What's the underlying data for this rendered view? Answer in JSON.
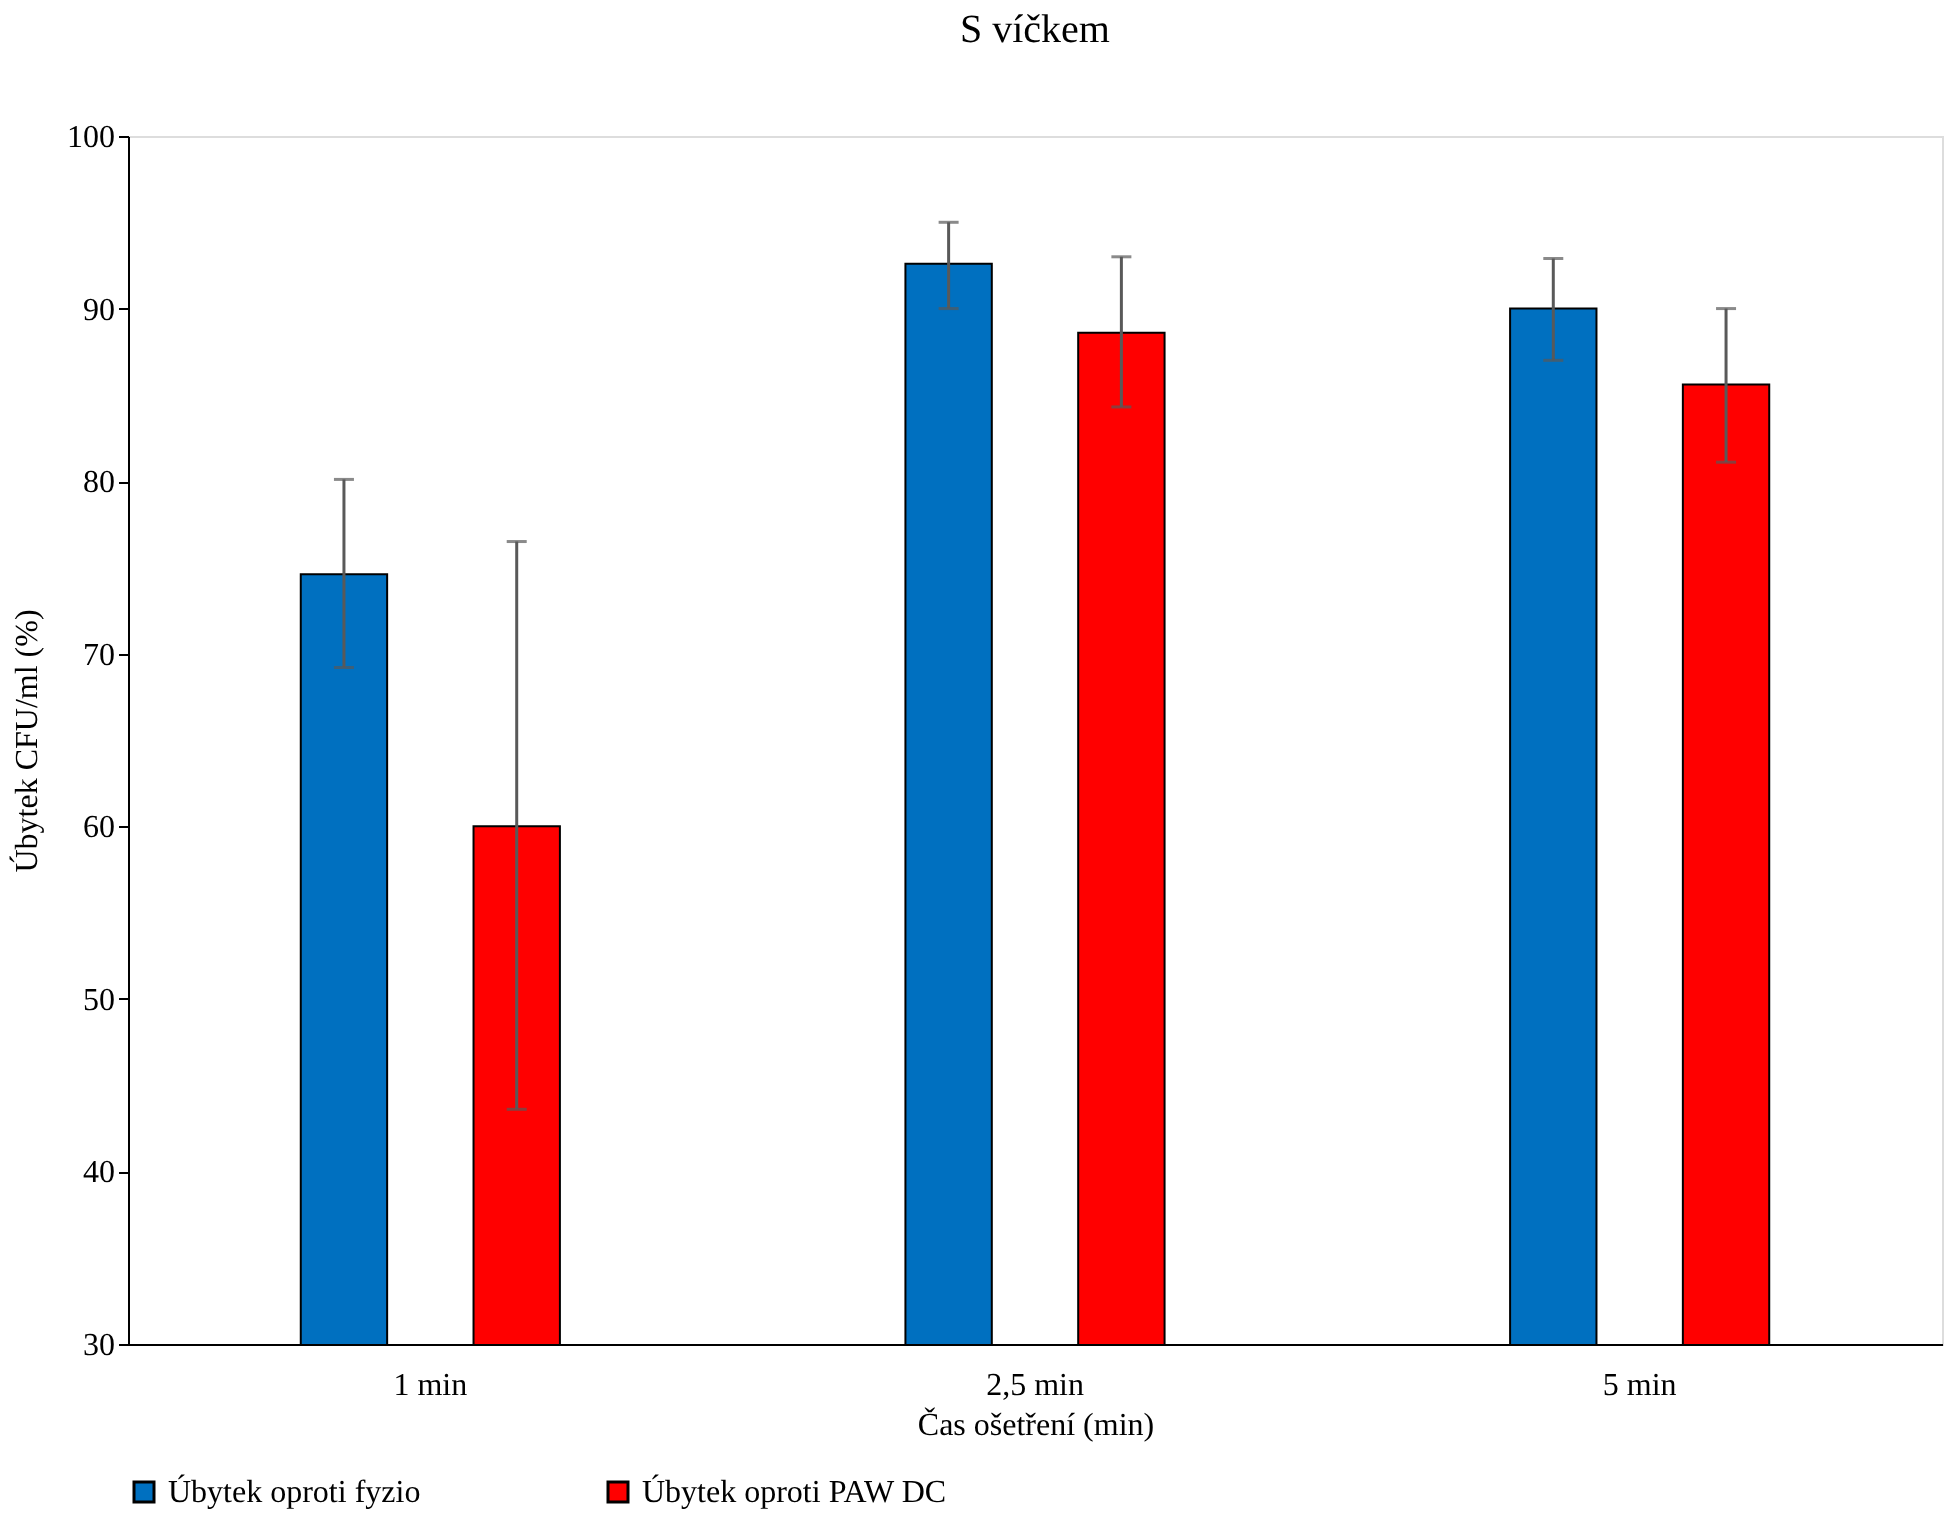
{
  "chart_data": {
    "type": "bar",
    "title": "S víčkem",
    "xlabel": "Čas ošetření (min)",
    "ylabel": "Úbytek CFU/ml (%)",
    "categories": [
      "1 min",
      "2,5 min",
      "5 min"
    ],
    "series": [
      {
        "name": "Úbytek oproti fyzio",
        "color": "#0070c0",
        "values": [
          74.6,
          92.6,
          90.0
        ],
        "errors": [
          [
            69.2,
            80.1
          ],
          [
            90.0,
            95.0
          ],
          [
            87.0,
            92.9
          ]
        ]
      },
      {
        "name": "Úbytek oproti PAW DC",
        "color": "#ff0000",
        "values": [
          60.0,
          88.6,
          85.6
        ],
        "errors": [
          [
            43.6,
            76.5
          ],
          [
            84.3,
            93.0
          ],
          [
            81.1,
            90.0
          ]
        ]
      }
    ],
    "ylim": [
      30,
      100
    ],
    "yticks": [
      30,
      40,
      50,
      60,
      70,
      80,
      90,
      100
    ],
    "grid": false,
    "legend": "bottom"
  }
}
